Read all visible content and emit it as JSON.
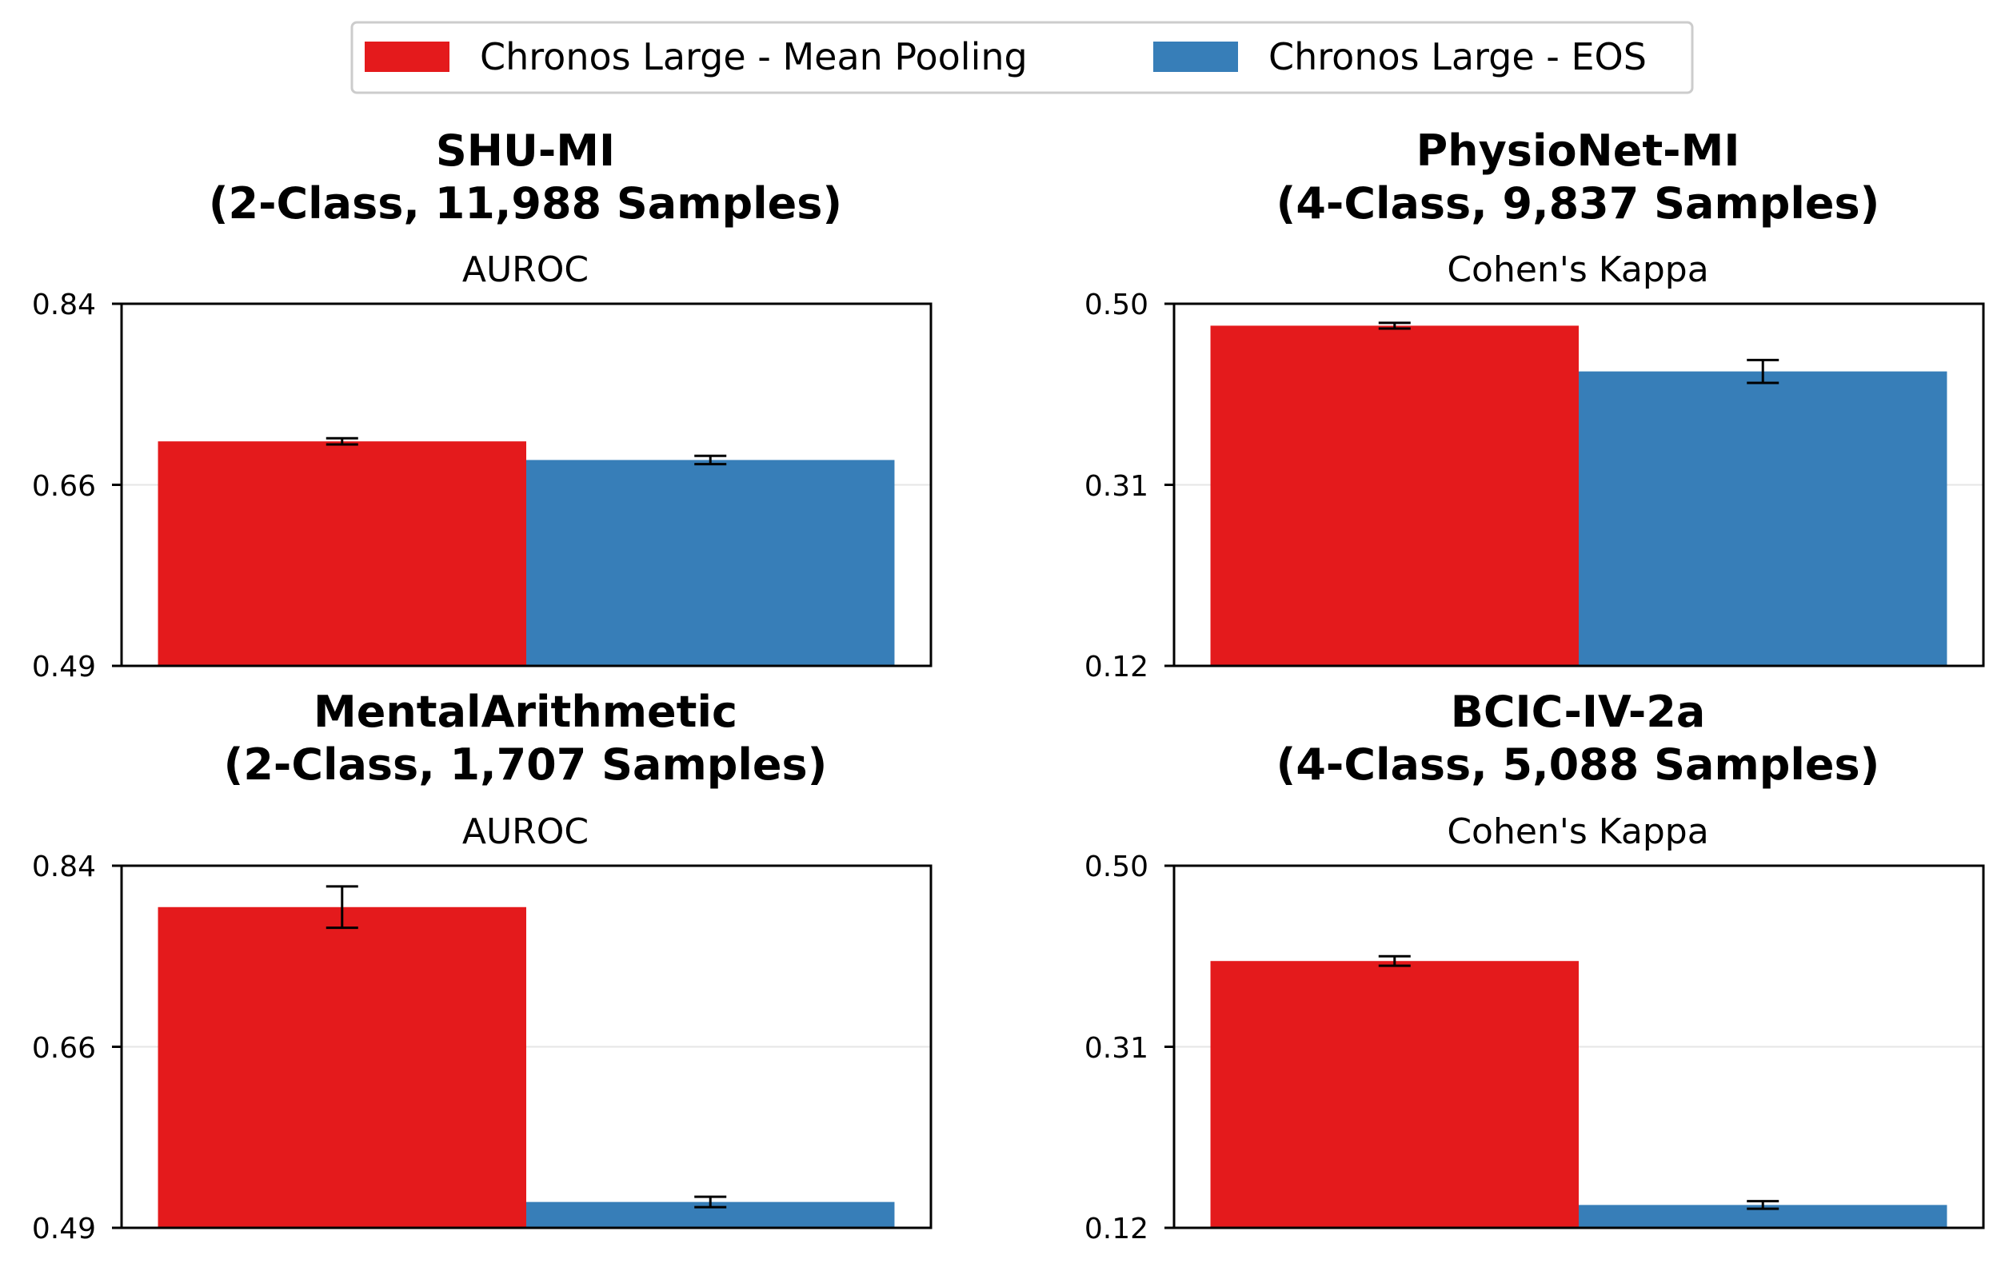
{
  "legend": {
    "items": [
      {
        "label": "Chronos Large - Mean Pooling",
        "color": "#e41a1c"
      },
      {
        "label": "Chronos Large - EOS",
        "color": "#377eb8"
      }
    ]
  },
  "chart_data": [
    {
      "type": "bar",
      "title_line1": "SHU-MI",
      "title_line2": "(2-Class, 11,988 Samples)",
      "metric": "AUROC",
      "series": [
        {
          "name": "Chronos Large - Mean Pooling",
          "value": 0.707,
          "error": 0.003
        },
        {
          "name": "Chronos Large - EOS",
          "value": 0.689,
          "error": 0.004
        }
      ],
      "ylim": [
        0.49,
        0.84
      ],
      "yticks": [
        "0.49",
        "0.66",
        "0.84"
      ]
    },
    {
      "type": "bar",
      "title_line1": "PhysioNet-MI",
      "title_line2": "(4-Class, 9,837 Samples)",
      "metric": "Cohen's Kappa",
      "series": [
        {
          "name": "Chronos Large - Mean Pooling",
          "value": 0.477,
          "error": 0.003
        },
        {
          "name": "Chronos Large - EOS",
          "value": 0.429,
          "error": 0.012
        }
      ],
      "ylim": [
        0.12,
        0.5
      ],
      "yticks": [
        "0.12",
        "0.31",
        "0.50"
      ]
    },
    {
      "type": "bar",
      "title_line1": "MentalArithmetic",
      "title_line2": "(2-Class, 1,707 Samples)",
      "metric": "AUROC",
      "series": [
        {
          "name": "Chronos Large - Mean Pooling",
          "value": 0.8,
          "error": 0.02
        },
        {
          "name": "Chronos Large - EOS",
          "value": 0.515,
          "error": 0.005
        }
      ],
      "ylim": [
        0.49,
        0.84
      ],
      "yticks": [
        "0.49",
        "0.66",
        "0.84"
      ]
    },
    {
      "type": "bar",
      "title_line1": "BCIC-IV-2a",
      "title_line2": "(4-Class, 5,088 Samples)",
      "metric": "Cohen's Kappa",
      "series": [
        {
          "name": "Chronos Large - Mean Pooling",
          "value": 0.4,
          "error": 0.005
        },
        {
          "name": "Chronos Large - EOS",
          "value": 0.144,
          "error": 0.004
        }
      ],
      "ylim": [
        0.12,
        0.5
      ],
      "yticks": [
        "0.12",
        "0.31",
        "0.50"
      ]
    }
  ]
}
